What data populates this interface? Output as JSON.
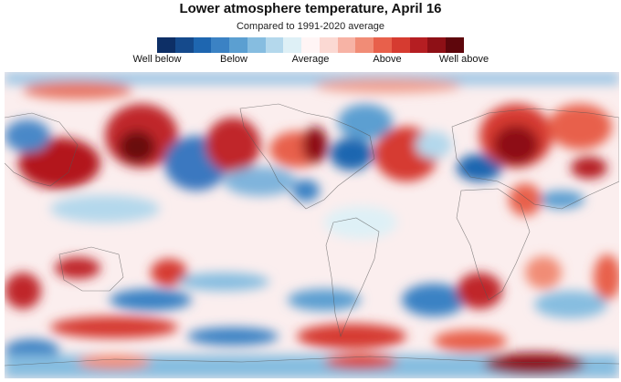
{
  "header": {
    "title": "Lower atmosphere temperature, April 16",
    "subtitle": "Compared to 1991-2020 average"
  },
  "legend": {
    "colors": [
      "#0d2f66",
      "#154a8c",
      "#1e66b0",
      "#3b82c4",
      "#5b9fd1",
      "#86bde0",
      "#b4d8ec",
      "#def0f6",
      "#fff5f5",
      "#fbd9d3",
      "#f7b3a5",
      "#f18c76",
      "#e8604b",
      "#d63b30",
      "#b51e22",
      "#8e1016",
      "#5e060c"
    ],
    "labels": [
      "Well below",
      "Below",
      "Average",
      "Above",
      "Well above"
    ]
  },
  "map": {
    "description_colors": {
      "land_border": "#555555",
      "warm": "#c8282a",
      "cold": "#3a78c0",
      "neutral": "#fbeeee"
    }
  }
}
